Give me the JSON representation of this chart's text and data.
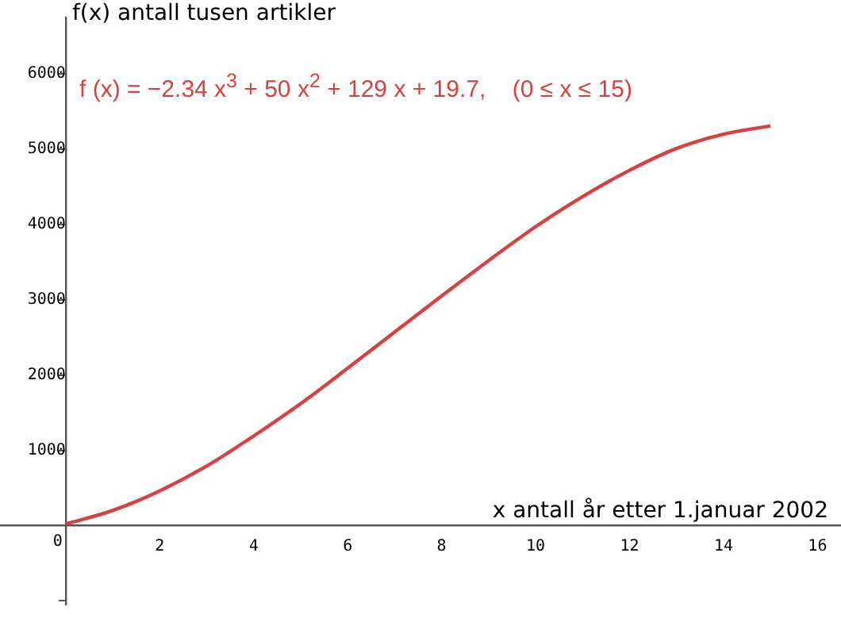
{
  "chart_data": {
    "type": "line",
    "xlabel": "x antall år etter 1.januar 2002",
    "ylabel": "f(x) antall tusen artikler",
    "annotations": [
      "f (x) = −2.34 x$^{3}$ + 50 x$^{2}$ + 129 x + 19.7,    (0 ≤ x ≤ 15)"
    ],
    "x": [
      0,
      1,
      2,
      3,
      4,
      5,
      6,
      7,
      8,
      9,
      10,
      11,
      12,
      13,
      14,
      15
    ],
    "series": [
      {
        "color": "#d94040",
        "values": [
          20,
          200,
          460,
          790,
          1190,
          1620,
          2090,
          2570,
          3050,
          3520,
          3970,
          4370,
          4720,
          5010,
          5200,
          5310
        ]
      }
    ],
    "xlim": [
      -1.4,
      16.5
    ],
    "xticks": [
      0,
      2,
      4,
      6,
      8,
      10,
      12,
      14,
      16
    ],
    "ylim": [
      -1050,
      6750
    ],
    "yticks": [
      {
        "value": -1000,
        "label": null
      },
      {
        "value": 0,
        "label": null
      },
      1000,
      2000,
      3000,
      4000,
      5000,
      6000
    ],
    "grid": false,
    "legend": false,
    "marker": "none"
  }
}
